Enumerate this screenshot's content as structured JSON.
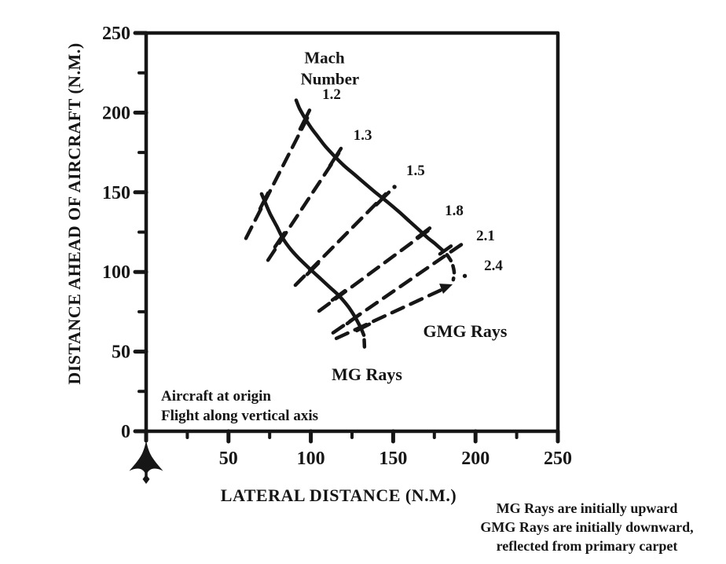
{
  "figure": {
    "ink": "#161616",
    "background": "#ffffff"
  },
  "axes": {
    "x": {
      "label": "LATERAL DISTANCE (N.M.)",
      "min": 0,
      "max": 250,
      "major_ticks": [
        50,
        100,
        150,
        200,
        250
      ],
      "minor_ticks": [
        25,
        75,
        125,
        175,
        225
      ]
    },
    "y": {
      "label": "DISTANCE AHEAD OF AIRCRAFT (N.M.)",
      "min": 0,
      "max": 250,
      "major_ticks": [
        0,
        50,
        100,
        150,
        200,
        250
      ],
      "minor_ticks": [
        25,
        75,
        125,
        175,
        225
      ]
    }
  },
  "notes": {
    "origin_note": [
      "Aircraft at origin",
      "Flight along vertical axis"
    ],
    "footnote": [
      "MG Rays are initially upward",
      "GMG Rays are initially downward,",
      "reflected from primary carpet"
    ]
  },
  "icons": {
    "origin_marker": "aircraft-silhouette"
  },
  "chart_data": {
    "type": "line",
    "title": "",
    "xlabel": "LATERAL DISTANCE (N.M.)",
    "ylabel": "DISTANCE AHEAD OF AIRCRAFT (N.M.)",
    "xlim": [
      0,
      250
    ],
    "ylim": [
      0,
      250
    ],
    "grid": false,
    "legend": "none",
    "mach_numbers": [
      1.2,
      1.3,
      1.5,
      1.8,
      2.1,
      2.4
    ],
    "series": [
      {
        "name": "GMG wavefront",
        "style": "solid",
        "points": [
          [
            91.1,
            207.8
          ],
          [
            93.0,
            202.9
          ],
          [
            95.9,
            197.5
          ],
          [
            99.7,
            191.2
          ],
          [
            104.0,
            185.3
          ],
          [
            108.8,
            178.9
          ],
          [
            114.5,
            172.5
          ],
          [
            120.2,
            166.7
          ],
          [
            126.9,
            160.8
          ],
          [
            133.6,
            154.9
          ],
          [
            140.3,
            149.0
          ],
          [
            146.9,
            143.6
          ],
          [
            153.6,
            137.7
          ],
          [
            159.8,
            131.9
          ],
          [
            165.6,
            126.5
          ],
          [
            170.8,
            121.6
          ],
          [
            175.6,
            117.6
          ],
          [
            179.9,
            113.7
          ]
        ]
      },
      {
        "name": "GMG wavefront dashed tail",
        "style": "dashed-short",
        "points": [
          [
            182.7,
            110.8
          ],
          [
            185.6,
            105.9
          ],
          [
            187.0,
            100.0
          ],
          [
            186.5,
            95.1
          ]
        ]
      },
      {
        "name": "MG wavefront",
        "style": "solid",
        "points": [
          [
            70.1,
            149.0
          ],
          [
            72.5,
            143.1
          ],
          [
            75.4,
            136.3
          ],
          [
            79.2,
            128.9
          ],
          [
            83.0,
            121.1
          ],
          [
            87.8,
            114.2
          ],
          [
            93.0,
            108.3
          ],
          [
            98.8,
            102.5
          ],
          [
            105.0,
            96.6
          ],
          [
            111.2,
            90.7
          ],
          [
            116.9,
            85.3
          ],
          [
            122.6,
            78.4
          ],
          [
            126.9,
            71.6
          ],
          [
            130.2,
            65.2
          ],
          [
            132.2,
            60.3
          ]
        ]
      },
      {
        "name": "MG wavefront dashed tail",
        "style": "dashed-short",
        "points": [
          [
            132.4,
            57.4
          ],
          [
            132.6,
            52.5
          ]
        ]
      },
      {
        "name": "Mach 1.2 ray",
        "mach": "1.2",
        "style": "dashed",
        "points": [
          [
            60.6,
            121.1
          ],
          [
            98.3,
            197.5
          ]
        ]
      },
      {
        "name": "Mach 1.3 ray",
        "mach": "1.3",
        "style": "dashed",
        "points": [
          [
            74.0,
            107.4
          ],
          [
            116.9,
            174.5
          ]
        ]
      },
      {
        "name": "Mach 1.5 ray",
        "mach": "1.5",
        "style": "dashed",
        "points": [
          [
            90.6,
            91.7
          ],
          [
            145.5,
            149.0
          ]
        ]
      },
      {
        "name": "Mach 1.8 ray",
        "mach": "1.8",
        "style": "dashed",
        "points": [
          [
            105.0,
            75.5
          ],
          [
            171.3,
            126.0
          ]
        ]
      },
      {
        "name": "Mach 2.1 ray",
        "mach": "2.1",
        "style": "dashed",
        "points": [
          [
            113.5,
            61.8
          ],
          [
            192.7,
            118.1
          ]
        ]
      },
      {
        "name": "Mach 2.4 ray",
        "mach": "2.4",
        "style": "dashed",
        "points": [
          [
            115.5,
            58.3
          ],
          [
            182.3,
            90.2
          ]
        ]
      }
    ],
    "cross_ticks": [
      [
        [
          93.5,
          189.7
        ],
        [
          99.2,
          201.5
        ]
      ],
      [
        [
          111.6,
          166.7
        ],
        [
          118.3,
          177.5
        ]
      ],
      [
        [
          139.8,
          142.2
        ],
        [
          147.4,
          150.0
        ]
      ],
      [
        [
          164.6,
          121.6
        ],
        [
          172.2,
          127.5
        ]
      ],
      [
        [
          178.4,
          111.3
        ],
        [
          185.1,
          116.2
        ]
      ],
      [
        [
          69.2,
          139.7
        ],
        [
          74.0,
          149.5
        ]
      ],
      [
        [
          78.2,
          115.7
        ],
        [
          84.0,
          124.5
        ]
      ],
      [
        [
          97.8,
          98.5
        ],
        [
          104.5,
          105.4
        ]
      ],
      [
        [
          113.1,
          82.4
        ],
        [
          120.7,
          88.2
        ]
      ],
      [
        [
          122.1,
          67.6
        ],
        [
          129.8,
          73.5
        ]
      ],
      [
        [
          127.9,
          63.2
        ],
        [
          135.5,
          67.2
        ]
      ]
    ],
    "end_dots": [
      [
        150.8,
        153.4
      ],
      [
        193.5,
        97.5
      ]
    ],
    "arrow": {
      "x": 186.1,
      "y": 92.2,
      "angle_deg": -21
    },
    "annotations": [
      {
        "text": "Mach",
        "x": 108.3,
        "y": 234.3,
        "size": 21,
        "kind": "header"
      },
      {
        "text": "Number",
        "x": 111.6,
        "y": 221.1,
        "size": 21,
        "kind": "header"
      },
      {
        "text": "1.2",
        "x": 112.6,
        "y": 210.8,
        "size": 19,
        "kind": "mach"
      },
      {
        "text": "1.3",
        "x": 131.5,
        "y": 185.5,
        "size": 19,
        "kind": "mach"
      },
      {
        "text": "1.5",
        "x": 163.6,
        "y": 163.0,
        "size": 19,
        "kind": "mach"
      },
      {
        "text": "1.8",
        "x": 187.0,
        "y": 138.2,
        "size": 19,
        "kind": "mach"
      },
      {
        "text": "2.1",
        "x": 206.1,
        "y": 122.5,
        "size": 19,
        "kind": "mach"
      },
      {
        "text": "2.4",
        "x": 210.9,
        "y": 103.4,
        "size": 19,
        "kind": "mach"
      },
      {
        "text": "MG Rays",
        "x": 134.1,
        "y": 35.3,
        "size": 22,
        "kind": "region"
      },
      {
        "text": "GMG Rays",
        "x": 193.7,
        "y": 62.7,
        "size": 22,
        "kind": "region"
      }
    ]
  }
}
